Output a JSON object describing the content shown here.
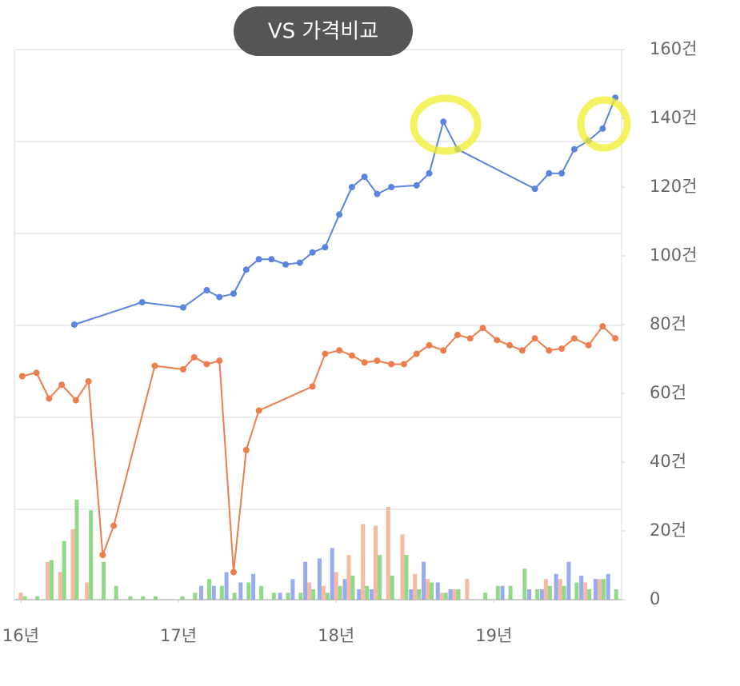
{
  "chart_data": {
    "type": "combo",
    "title": "VS 가격비교",
    "xlim": [
      15.96,
      19.81
    ],
    "xticks": [
      {
        "value": 16,
        "label": "16년"
      },
      {
        "value": 17,
        "label": "17년"
      },
      {
        "value": 18,
        "label": "18년"
      },
      {
        "value": 19,
        "label": "19년"
      }
    ],
    "ylim": [
      0,
      160
    ],
    "yticks": [
      0,
      {
        "value": 20,
        "label": "20건"
      },
      {
        "value": 40,
        "label": "40건"
      },
      {
        "value": 60,
        "label": "60건"
      },
      {
        "value": 80,
        "label": "80건"
      },
      {
        "value": 100,
        "label": "100건"
      },
      {
        "value": 120,
        "label": "120건"
      },
      {
        "value": 140,
        "label": "140건"
      },
      {
        "value": 160,
        "label": "160건"
      }
    ],
    "series": [
      {
        "type": "line",
        "color": "#5b84e0",
        "x": [
          16.34,
          16.77,
          17.03,
          17.18,
          17.26,
          17.35,
          17.43,
          17.51,
          17.59,
          17.68,
          17.77,
          17.85,
          17.93,
          18.02,
          18.1,
          18.18,
          18.26,
          18.35,
          18.51,
          18.59,
          18.68,
          18.77,
          19.26,
          19.35,
          19.43,
          19.51,
          19.6,
          19.69,
          19.77
        ],
        "values": [
          80,
          86.5,
          85,
          90,
          88,
          89,
          96,
          99,
          99,
          97.5,
          98,
          101,
          102.5,
          112,
          120,
          123,
          118,
          120,
          120.5,
          124,
          139,
          131,
          119.5,
          124,
          124,
          131,
          133.5,
          137,
          146
        ]
      },
      {
        "type": "line",
        "color": "#ec7d4c",
        "x": [
          16.01,
          16.1,
          16.18,
          16.26,
          16.35,
          16.43,
          16.52,
          16.59,
          16.85,
          17.03,
          17.1,
          17.18,
          17.26,
          17.35,
          17.43,
          17.51,
          17.85,
          17.93,
          18.02,
          18.1,
          18.18,
          18.26,
          18.35,
          18.43,
          18.51,
          18.59,
          18.68,
          18.77,
          18.85,
          18.93,
          19.02,
          19.1,
          19.18,
          19.26,
          19.35,
          19.43,
          19.51,
          19.6,
          19.69,
          19.77
        ],
        "values": [
          65,
          66,
          58.5,
          62.5,
          58,
          63.5,
          13,
          21.5,
          68,
          67,
          70.5,
          68.5,
          69.5,
          8,
          43.5,
          55,
          62,
          71.5,
          72.5,
          71,
          69,
          69.5,
          68.5,
          68.5,
          71.5,
          74,
          72.5,
          77,
          76,
          79,
          75.5,
          74,
          72.5,
          76,
          72.5,
          73,
          76,
          74,
          79.5,
          76
        ]
      },
      {
        "type": "bar",
        "color": "#7f96ec",
        "values": [
          0,
          0,
          0,
          0,
          0,
          0,
          0,
          0,
          0,
          0,
          0,
          0,
          0,
          0,
          4,
          4,
          8,
          5,
          7.5,
          0,
          2,
          6,
          11,
          12,
          15,
          6,
          3,
          3,
          0,
          0,
          3,
          11,
          5,
          3,
          0,
          0,
          0,
          4,
          0,
          3,
          3,
          7.5,
          11,
          7,
          6,
          7.5
        ]
      },
      {
        "type": "bar",
        "color": "#f3a98c",
        "values": [
          2,
          0,
          11,
          8,
          20.5,
          5,
          0,
          0,
          0,
          0,
          0,
          0,
          0,
          0,
          0,
          0,
          0,
          0,
          0,
          0,
          0,
          0,
          5,
          4,
          8,
          13,
          22,
          21.5,
          27,
          19,
          7.5,
          6,
          2,
          3,
          6,
          0,
          0,
          0,
          0,
          0,
          6,
          6,
          0,
          5,
          6,
          0
        ]
      },
      {
        "type": "bar",
        "color": "#76d06c",
        "values": [
          1,
          1,
          11.5,
          17,
          29,
          26,
          11,
          4,
          1,
          1,
          1,
          0,
          1,
          2,
          6,
          4,
          2,
          5,
          4,
          2,
          2,
          2,
          3,
          2,
          4,
          7,
          4,
          13,
          7,
          13,
          3,
          5,
          2,
          3,
          0,
          2,
          4,
          4,
          9,
          3,
          4,
          4,
          5,
          3,
          6,
          3
        ]
      }
    ],
    "bar_x": [
      16.0,
      16.08,
      16.17,
      16.25,
      16.33,
      16.42,
      16.5,
      16.58,
      16.67,
      16.75,
      16.83,
      16.92,
      17.0,
      17.08,
      17.17,
      17.25,
      17.33,
      17.42,
      17.5,
      17.58,
      17.67,
      17.75,
      17.83,
      17.92,
      18.0,
      18.08,
      18.17,
      18.25,
      18.33,
      18.42,
      18.5,
      18.58,
      18.67,
      18.75,
      18.83,
      18.92,
      19.0,
      19.08,
      19.17,
      19.25,
      19.33,
      19.42,
      19.5,
      19.58,
      19.67,
      19.75
    ]
  }
}
